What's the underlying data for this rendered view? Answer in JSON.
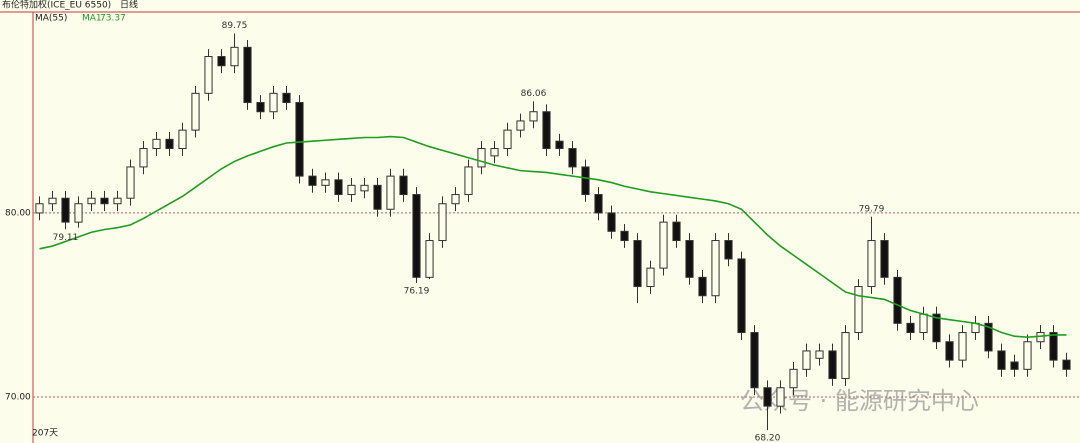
{
  "chart_data": {
    "type": "candlestick",
    "title": "布伦特加权(ICE_EU 6550)",
    "period": "日线",
    "indicator": "MA(55)",
    "footer": "207天",
    "watermark": "公众号 · 能源研究中心",
    "ylim": [
      67.66,
      90.92
    ],
    "yticks": [
      {
        "value": 70,
        "label": "70.00"
      },
      {
        "value": 80,
        "label": "80.00"
      }
    ],
    "grid": true,
    "up_color": "#fdfdeb",
    "down_color": "#111111",
    "candles": {
      "open": [
        80.0,
        80.5,
        80.8,
        79.5,
        80.5,
        80.8,
        80.5,
        80.8,
        82.5,
        83.5,
        84,
        83.5,
        84.5,
        86.5,
        88.5,
        88,
        89,
        86,
        85.5,
        86.5,
        86,
        82,
        81.5,
        81.8,
        81,
        81.2,
        81.5,
        80.2,
        82,
        81,
        76.5,
        78.5,
        80.5,
        81,
        82.5,
        83.1,
        83.5,
        84.5,
        85,
        85.5,
        83.9,
        83.5,
        82.5,
        81,
        80,
        79,
        78.5,
        76,
        77,
        79.5,
        78.5,
        76.5,
        75.5,
        78.5,
        77.5,
        73.5,
        70.5,
        69.5,
        70.5,
        71.5,
        72.1,
        72.5,
        71,
        73.5,
        76,
        78.5,
        76.5,
        74,
        73.5,
        74.5,
        73,
        72,
        73.5,
        74,
        72.5,
        71.9,
        71.5,
        73,
        73.5,
        72
      ],
      "high": [
        80.9,
        81.2,
        81.2,
        80.9,
        81.2,
        81.2,
        81.2,
        82.9,
        83.9,
        84.4,
        84.4,
        84.9,
        86.9,
        88.9,
        88.9,
        89.75,
        89.4,
        86.4,
        86.9,
        86.9,
        86.4,
        82.4,
        82.2,
        82.2,
        81.9,
        81.9,
        81.9,
        82.4,
        82.4,
        81.4,
        78.9,
        80.9,
        81.4,
        82.9,
        83.9,
        83.9,
        84.9,
        85.4,
        86.06,
        85.9,
        84.3,
        83.9,
        82.9,
        81.4,
        80.4,
        79.4,
        78.9,
        77.4,
        79.9,
        79.9,
        78.9,
        76.9,
        78.9,
        78.9,
        77.9,
        73.9,
        70.9,
        70.9,
        71.9,
        72.9,
        72.9,
        72.9,
        73.9,
        76.4,
        79.79,
        78.9,
        76.9,
        74.4,
        74.9,
        74.9,
        73.4,
        73.9,
        74.4,
        74.4,
        72.9,
        72.3,
        73.4,
        73.9,
        73.9,
        72.4
      ],
      "low": [
        79.6,
        80.1,
        79.11,
        79.2,
        80.1,
        80.1,
        80.1,
        80.4,
        82.1,
        83.1,
        83.1,
        83.1,
        84.1,
        86.1,
        87.6,
        87.6,
        85.6,
        85.1,
        85.1,
        85.6,
        81.6,
        81.1,
        81.1,
        80.6,
        80.6,
        80.8,
        79.8,
        79.8,
        80.6,
        76.19,
        76.4,
        78.1,
        80.1,
        80.6,
        82.1,
        82.7,
        83.1,
        84.1,
        84.6,
        83.1,
        83.1,
        82.1,
        80.6,
        79.6,
        78.6,
        78.1,
        75.1,
        75.6,
        76.6,
        78.1,
        76.1,
        75.1,
        75.1,
        77.1,
        73.1,
        70.1,
        68.2,
        69.1,
        70.1,
        71.1,
        71.7,
        70.6,
        70.6,
        73.1,
        75.6,
        76.1,
        73.6,
        73.1,
        73.1,
        72.6,
        71.6,
        71.6,
        73.1,
        72.1,
        71.1,
        71.1,
        71.1,
        72.6,
        71.6,
        71.1
      ],
      "close": [
        80.5,
        80.8,
        79.5,
        80.5,
        80.8,
        80.5,
        80.8,
        82.5,
        83.5,
        84,
        83.5,
        84.5,
        86.5,
        88.5,
        88,
        89,
        86,
        85.5,
        86.5,
        86,
        82,
        81.5,
        81.8,
        81,
        81.5,
        81.5,
        80.2,
        82,
        81,
        76.5,
        78.5,
        80.5,
        81,
        82.5,
        83.5,
        83.5,
        84.5,
        85,
        85.5,
        83.5,
        83.5,
        82.5,
        81,
        80,
        79,
        78.5,
        76,
        77,
        79.5,
        78.5,
        76.5,
        75.5,
        78.5,
        77.5,
        73.5,
        70.5,
        69.5,
        70.5,
        71.5,
        72.5,
        72.5,
        71,
        73.5,
        76,
        78.5,
        76.5,
        74,
        73.5,
        74.5,
        73,
        72,
        73.5,
        74,
        72.5,
        71.5,
        71.5,
        73,
        73.5,
        72,
        71.5
      ]
    },
    "ma": {
      "name": "MA1",
      "color": "#1f9e1f",
      "values": [
        78.05,
        78.2,
        78.45,
        78.7,
        78.95,
        79.1,
        79.2,
        79.35,
        79.7,
        80.1,
        80.5,
        80.9,
        81.4,
        81.9,
        82.4,
        82.8,
        83.1,
        83.35,
        83.6,
        83.8,
        83.85,
        83.9,
        83.95,
        84.0,
        84.05,
        84.1,
        84.1,
        84.15,
        84.1,
        83.85,
        83.6,
        83.4,
        83.2,
        83.0,
        82.8,
        82.6,
        82.45,
        82.3,
        82.25,
        82.2,
        82.1,
        82.0,
        81.9,
        81.8,
        81.65,
        81.45,
        81.3,
        81.15,
        81.05,
        80.95,
        80.85,
        80.75,
        80.65,
        80.5,
        80.2,
        79.5,
        78.8,
        78.2,
        77.7,
        77.2,
        76.7,
        76.2,
        75.7,
        75.5,
        75.4,
        75.3,
        75.0,
        74.7,
        74.5,
        74.3,
        74.2,
        74.1,
        74.0,
        73.8,
        73.5,
        73.3,
        73.25,
        73.3,
        73.37,
        73.37
      ]
    },
    "annotations": [
      "89.75",
      "86.06",
      "79.79",
      "79.11",
      "76.19",
      "68.20"
    ]
  }
}
